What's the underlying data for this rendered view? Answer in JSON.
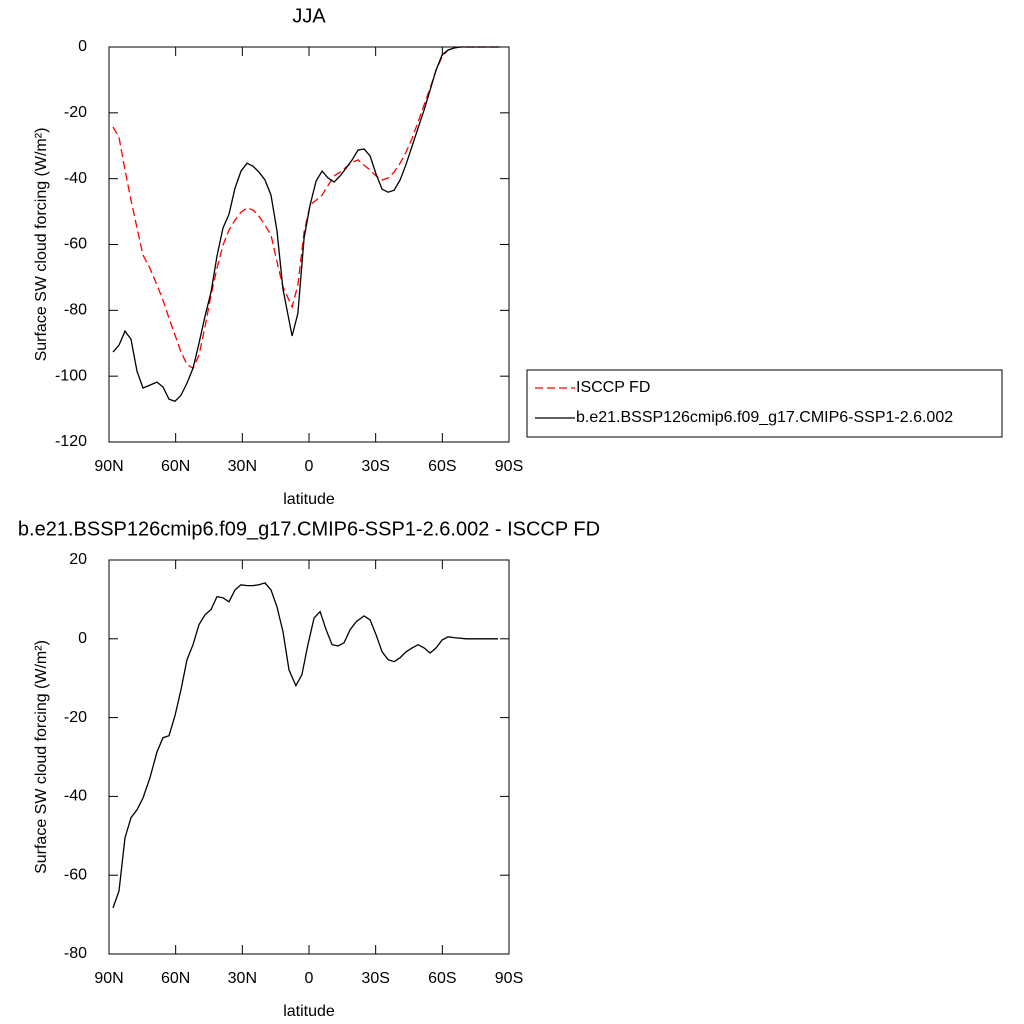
{
  "chart_data": [
    {
      "type": "line",
      "title": "JJA",
      "xlabel": "latitude",
      "ylabel": "Surface SW cloud forcing (W/m²)",
      "x": [
        88.2,
        85.5,
        82.8,
        80.1,
        77.4,
        74.7,
        71.6,
        68.4,
        65.7,
        63,
        60.3,
        57.6,
        54.9,
        52.2,
        49.5,
        46.8,
        44.1,
        41.4,
        38.7,
        36,
        33.3,
        30.6,
        27.9,
        25.2,
        22.5,
        19.8,
        17.1,
        14.4,
        11.7,
        7.6,
        5,
        2.2,
        -0.5,
        -3.2,
        -5.9,
        -8.6,
        -11.3,
        -14,
        -16.7,
        -19.4,
        -22.1,
        -24.8,
        -27.5,
        -30.2,
        -32.9,
        -35.6,
        -38.3,
        -41,
        -43.7,
        -46.4,
        -49.1,
        -51.8,
        -54.5,
        -57.2,
        -59.9,
        -62.6,
        -65.3,
        -68,
        -86
      ],
      "series": [
        {
          "name": "ISCCP FD",
          "color": "#ff0000",
          "linestyle": "dashed",
          "values": [
            -24.3,
            -27.4,
            -37.4,
            -46.5,
            -55,
            -63.2,
            -67.2,
            -72.3,
            -76.9,
            -82.4,
            -87.5,
            -92.7,
            -96.4,
            -97.6,
            -93.6,
            -85.1,
            -75.4,
            -67.2,
            -60.2,
            -55.6,
            -52.6,
            -50.2,
            -48.9,
            -49.5,
            -51.4,
            -54.1,
            -57.1,
            -65.3,
            -72.9,
            -79,
            -72.3,
            -56.2,
            -48,
            -46.5,
            -45,
            -42,
            -39.2,
            -38,
            -36.5,
            -35,
            -34.3,
            -35.9,
            -37.4,
            -39.2,
            -40.4,
            -39.8,
            -38,
            -35.3,
            -31.9,
            -27.7,
            -22.8,
            -17.6,
            -12.5,
            -7,
            -3,
            -0.9,
            -0.3,
            0,
            0
          ]
        },
        {
          "name": "b.e21.BSSP126cmip6.f09_g17.CMIP6-SSP1-2.6.002",
          "color": "#000000",
          "linestyle": "solid",
          "values": [
            -92.7,
            -90.6,
            -86.3,
            -88.8,
            -98.5,
            -103.6,
            -102.7,
            -101.8,
            -103.3,
            -107,
            -107.6,
            -105.8,
            -102.1,
            -97.6,
            -90,
            -81.8,
            -74.5,
            -63.5,
            -55,
            -50.8,
            -42.9,
            -37.7,
            -35.3,
            -36.2,
            -38,
            -40.4,
            -45,
            -55.9,
            -73.6,
            -87.8,
            -80.9,
            -58,
            -48,
            -40.7,
            -37.7,
            -39.8,
            -41,
            -39.2,
            -36.8,
            -34.3,
            -31.3,
            -31,
            -33.1,
            -38.6,
            -43.2,
            -44.1,
            -43.5,
            -40.4,
            -35.6,
            -30.1,
            -24.6,
            -19.1,
            -13.1,
            -7,
            -2.4,
            -0.9,
            -0.3,
            0,
            0
          ]
        }
      ],
      "xlim": [
        90,
        -90
      ],
      "xticks": [
        {
          "value": 90,
          "label": "90N"
        },
        {
          "value": 60,
          "label": "60N"
        },
        {
          "value": 30,
          "label": "30N"
        },
        0,
        {
          "value": -30,
          "label": "30S"
        },
        {
          "value": -60,
          "label": "60S"
        },
        {
          "value": -90,
          "label": "90S"
        }
      ],
      "ylim": [
        -120,
        0
      ],
      "yticks": [
        0,
        -20,
        -40,
        -60,
        -80,
        -100,
        -120
      ],
      "legend": "right"
    },
    {
      "type": "line",
      "title": "b.e21.BSSP126cmip6.f09_g17.CMIP6-SSP1-2.6.002 - ISCCP FD",
      "xlabel": "latitude",
      "ylabel": "Surface SW cloud forcing (W/m²)",
      "x": [
        88.2,
        85.5,
        82.8,
        80.1,
        77.4,
        74.7,
        71.6,
        68.4,
        65.7,
        63,
        60.3,
        57.6,
        54.9,
        52.2,
        49.5,
        46.8,
        44.1,
        41.4,
        38.7,
        36,
        33.3,
        30.6,
        27.9,
        25.2,
        22.5,
        19.8,
        17.1,
        14.4,
        11.7,
        9,
        5.9,
        3.2,
        0.5,
        -2.3,
        -5,
        -7.7,
        -10.4,
        -13.1,
        -15.8,
        -18.5,
        -21.2,
        -24.8,
        -27.5,
        -30.2,
        -32.9,
        -35.6,
        -38.3,
        -41,
        -43.7,
        -46.4,
        -49.1,
        -51.8,
        -54.5,
        -57.2,
        -59.9,
        -62.6,
        -65.3,
        -70.7,
        -85.1
      ],
      "values": [
        -68.3,
        -64,
        -50.5,
        -45.4,
        -43.4,
        -40.4,
        -35.3,
        -28.7,
        -25.1,
        -24.6,
        -19.5,
        -12.9,
        -5.3,
        -1.5,
        3.6,
        6.1,
        7.4,
        10.7,
        10.4,
        9.4,
        12.4,
        13.7,
        13.5,
        13.5,
        13.7,
        14.2,
        12.4,
        8.1,
        1.8,
        -7.9,
        -11.9,
        -9.1,
        -1.5,
        5.3,
        6.9,
        2.3,
        -1.5,
        -1.8,
        -1,
        2.3,
        4.3,
        5.8,
        4.8,
        1,
        -3.3,
        -5.3,
        -5.8,
        -4.8,
        -3.3,
        -2.3,
        -1.5,
        -2.3,
        -3.6,
        -2.3,
        -0.3,
        0.5,
        0.3,
        0,
        0
      ],
      "color": "#000000",
      "xlim": [
        90,
        -90
      ],
      "xticks": [
        {
          "value": 90,
          "label": "90N"
        },
        {
          "value": 60,
          "label": "60N"
        },
        {
          "value": 30,
          "label": "30N"
        },
        0,
        {
          "value": -30,
          "label": "30S"
        },
        {
          "value": -60,
          "label": "60S"
        },
        {
          "value": -90,
          "label": "90S"
        }
      ],
      "ylim": [
        -80,
        20
      ],
      "yticks": [
        20,
        0,
        -20,
        -40,
        -60,
        -80
      ]
    }
  ]
}
